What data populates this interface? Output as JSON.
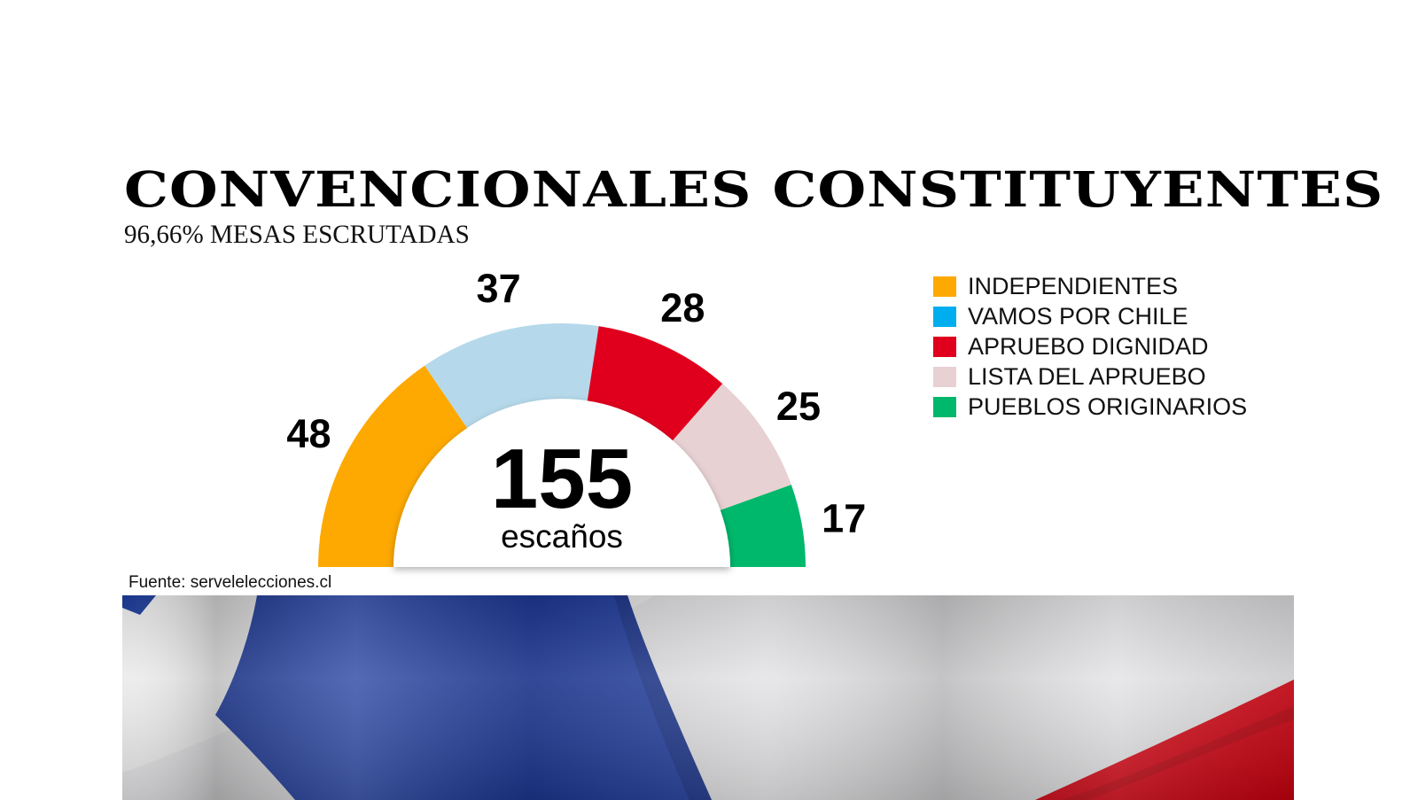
{
  "title": "CONVENCIONALES CONSTITUYENTES",
  "subtitle": "96,66% MESAS ESCRUTADAS",
  "source": "Fuente: servelelecciones.cl",
  "center": {
    "total": "155",
    "unit": "escaños"
  },
  "chart_data": {
    "type": "pie",
    "subtype": "semicircle-parliament",
    "title": "CONVENCIONALES CONSTITUYENTES",
    "subtitle": "96,66% MESAS ESCRUTADAS",
    "total": 155,
    "total_label": "escaños",
    "categories": [
      "INDEPENDIENTES",
      "VAMOS POR CHILE",
      "APRUEBO DIGNIDAD",
      "LISTA DEL APRUEBO",
      "PUEBLOS ORIGINARIOS"
    ],
    "values": [
      48,
      37,
      28,
      25,
      17
    ],
    "value_labels": [
      "48",
      "37",
      "28",
      "25",
      "17"
    ],
    "slice_colors": [
      "#fda901",
      "#b5d9ea",
      "#e0001d",
      "#e8d1d3",
      "#00b86b"
    ],
    "legend_colors": [
      "#fda901",
      "#00aeef",
      "#e0001d",
      "#e8d1d3",
      "#00b86b"
    ],
    "legend_position": "top-right"
  },
  "legend": [
    {
      "label": "INDEPENDIENTES",
      "color": "#fda901"
    },
    {
      "label": "VAMOS POR CHILE",
      "color": "#00aeef"
    },
    {
      "label": "APRUEBO DIGNIDAD",
      "color": "#e0001d"
    },
    {
      "label": "LISTA DEL APRUEBO",
      "color": "#e8d1d3"
    },
    {
      "label": "PUEBLOS ORIGINARIOS",
      "color": "#00b86b"
    }
  ],
  "background_image": "chilean-flag"
}
